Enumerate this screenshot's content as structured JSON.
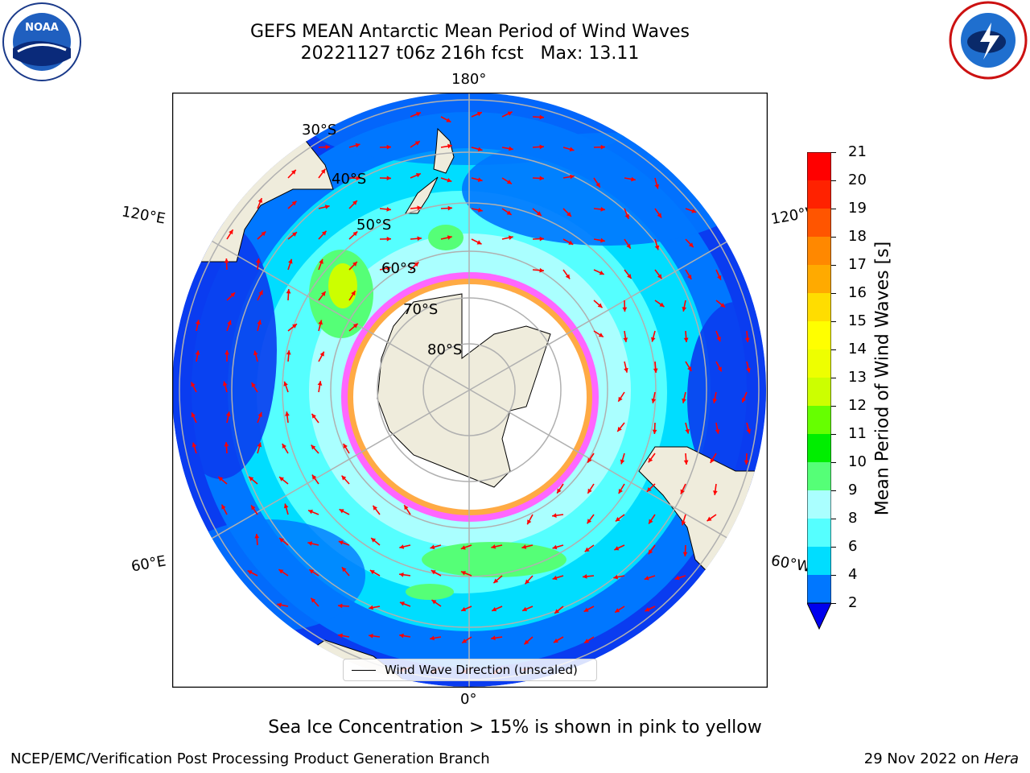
{
  "title_line1": "GEFS MEAN Antarctic Mean Period of Wind Waves",
  "title_line2": "20221127 t06z 216h fcst   Max: 13.11",
  "logos": {
    "left": "NOAA",
    "right": "National Weather Service"
  },
  "map": {
    "longitude_labels": [
      "180°",
      "120°E",
      "120°W",
      "60°E",
      "60°W",
      "0°"
    ],
    "latitude_labels": [
      "30°S",
      "40°S",
      "50°S",
      "60°S",
      "70°S",
      "80°S"
    ],
    "legend_text": "Wind Wave Direction (unscaled)",
    "arrow_color": "#ff0000",
    "land_color": "#efecdc",
    "ice_color": "#ffffff"
  },
  "colorbar": {
    "label": "Mean Period of Wind Waves [s]",
    "ticks": [
      "2",
      "4",
      "6",
      "8",
      "9",
      "10",
      "11",
      "12",
      "13",
      "14",
      "15",
      "16",
      "17",
      "18",
      "19",
      "20",
      "21"
    ],
    "colors": [
      "#0000ee",
      "#0077ff",
      "#00ddff",
      "#55ffff",
      "#aaffff",
      "#55ff77",
      "#00ee00",
      "#66ff00",
      "#ccff00",
      "#eeff00",
      "#ffff00",
      "#ffdd00",
      "#ffaa00",
      "#ff8800",
      "#ff5500",
      "#ff2200",
      "#ff0000"
    ]
  },
  "caption": "Sea Ice Concentration > 15% is shown in pink to yellow",
  "footer": {
    "left": "NCEP/EMC/Verification Post Processing Product Generation Branch",
    "right_prefix": "29 Nov 2022 on ",
    "right_machine": "Hera"
  }
}
